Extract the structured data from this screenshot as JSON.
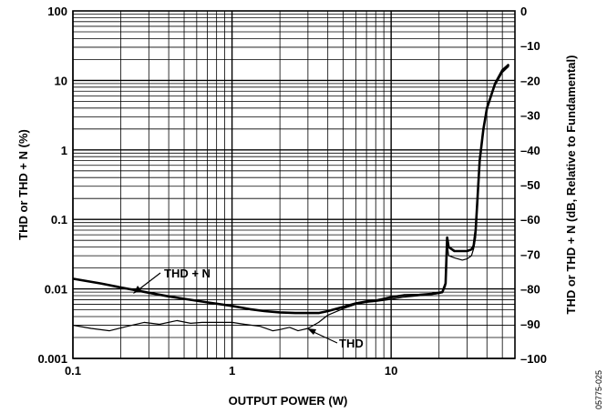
{
  "chart_data": {
    "type": "line",
    "x_scale": "log",
    "y_scale": "log",
    "xlim": [
      0.1,
      60
    ],
    "ylim": [
      0.001,
      100
    ],
    "y2lim": [
      -100,
      0
    ],
    "xlabel": "OUTPUT POWER (W)",
    "ylabel": "THD or THD + N (%)",
    "y2label": "THD or THD + N (dB, Relative to Fundamental)",
    "x_ticks": [
      "0.1",
      "1",
      "10"
    ],
    "y_ticks": [
      "0.001",
      "0.01",
      "0.1",
      "1",
      "10",
      "100"
    ],
    "y2_ticks": [
      "–100",
      "–90",
      "–80",
      "–70",
      "–60",
      "–50",
      "–40",
      "–30",
      "–20",
      "–10",
      "0"
    ],
    "grid": true,
    "series": [
      {
        "name": "THD + N",
        "x": [
          0.1,
          0.15,
          0.2,
          0.3,
          0.4,
          0.5,
          0.7,
          1.0,
          1.3,
          1.6,
          2.0,
          2.5,
          3.0,
          3.5,
          4.0,
          5.0,
          6.0,
          7.0,
          8.0,
          9.0,
          10.0,
          12.0,
          15.0,
          18.0,
          20.0,
          21.0,
          22.0,
          22.5,
          23.0,
          25.0,
          28.0,
          30.0,
          32.0,
          33.0,
          34.0,
          35.0,
          36.0,
          38.0,
          40.0,
          45.0,
          50.0,
          55.0
        ],
        "y": [
          0.014,
          0.012,
          0.0105,
          0.0088,
          0.0078,
          0.0072,
          0.0064,
          0.0057,
          0.0051,
          0.0048,
          0.0046,
          0.0045,
          0.0045,
          0.0045,
          0.0048,
          0.0055,
          0.0062,
          0.0066,
          0.0068,
          0.0072,
          0.0076,
          0.0081,
          0.0082,
          0.0085,
          0.0088,
          0.009,
          0.012,
          0.055,
          0.04,
          0.035,
          0.035,
          0.035,
          0.037,
          0.042,
          0.07,
          0.22,
          0.7,
          2.0,
          4.0,
          9.0,
          14.0,
          17.0
        ]
      },
      {
        "name": "THD",
        "x": [
          0.1,
          0.13,
          0.17,
          0.22,
          0.28,
          0.35,
          0.45,
          0.55,
          0.65,
          0.8,
          1.0,
          1.2,
          1.5,
          1.8,
          2.0,
          2.3,
          2.6,
          3.0,
          3.5,
          4.0,
          5.0,
          6.0,
          7.0,
          8.0,
          10.0,
          12.0,
          15.0,
          18.0,
          20.0,
          21.0,
          22.0,
          22.5,
          23.0,
          25.0,
          28.0,
          30.0,
          32.0,
          33.0,
          34.0,
          35.0,
          36.0,
          38.0,
          40.0,
          45.0,
          50.0,
          55.0
        ],
        "y": [
          0.003,
          0.0027,
          0.0025,
          0.0029,
          0.0033,
          0.0031,
          0.0035,
          0.0032,
          0.0033,
          0.0033,
          0.0033,
          0.0031,
          0.0029,
          0.0025,
          0.0026,
          0.0028,
          0.0025,
          0.0027,
          0.0033,
          0.0042,
          0.0052,
          0.006,
          0.0064,
          0.0066,
          0.0071,
          0.0076,
          0.008,
          0.0083,
          0.0086,
          0.0088,
          0.011,
          0.045,
          0.03,
          0.028,
          0.026,
          0.027,
          0.03,
          0.038,
          0.055,
          0.2,
          0.65,
          1.9,
          3.8,
          8.5,
          13.0,
          16.0
        ]
      }
    ],
    "annotations": [
      "THD + N",
      "THD"
    ],
    "figure_id": "05775-025"
  }
}
